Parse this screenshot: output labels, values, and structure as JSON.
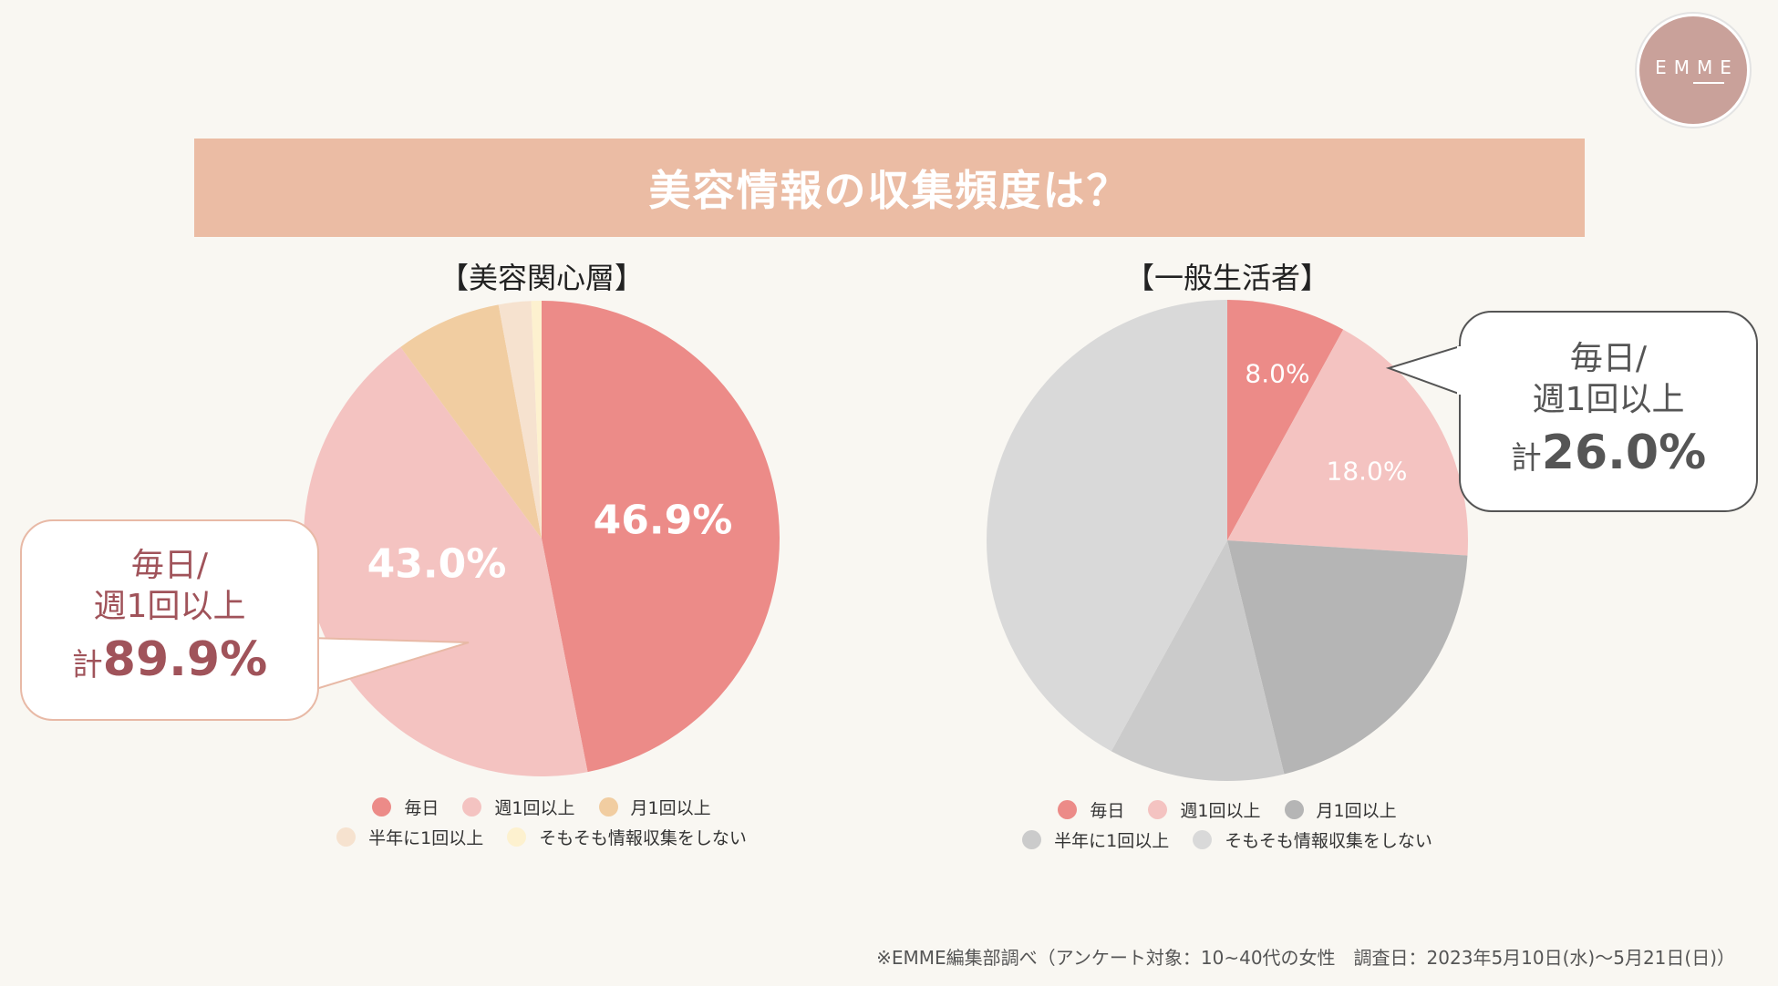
{
  "logo": {
    "text": "EMME",
    "color": "#c9a19a"
  },
  "title": "美容情報の収集頻度は？",
  "colors": {
    "title_bar": "#ebbca4",
    "background": "#f9f7f2"
  },
  "chart_data": [
    {
      "type": "pie",
      "title": "【美容関心層】",
      "categories": [
        "毎日",
        "週1回以上",
        "月1回以上",
        "半年に1回以上",
        "そもそも情報収集をしない"
      ],
      "values": [
        46.9,
        43.0,
        7.2,
        2.2,
        0.7
      ],
      "colors": [
        "#ec8b88",
        "#f4c3c1",
        "#f1cda1",
        "#f6e2cf",
        "#fdf1cf"
      ],
      "data_labels": [
        "46.9%",
        "43.0%",
        "",
        "",
        ""
      ],
      "legend": "bottom",
      "callout": {
        "line1": "毎日/",
        "line2": "週1回以上",
        "prefix": "計",
        "value": "89.9%"
      }
    },
    {
      "type": "pie",
      "title": "【一般生活者】",
      "categories": [
        "毎日",
        "週1回以上",
        "月1回以上",
        "半年に1回以上",
        "そもそも情報収集をしない"
      ],
      "values": [
        8.0,
        18.0,
        20.2,
        11.8,
        42.0
      ],
      "colors": [
        "#ec8b88",
        "#f4c3c1",
        "#b5b5b5",
        "#cbcbcb",
        "#d9d9d9"
      ],
      "data_labels": [
        "8.0%",
        "18.0%",
        "",
        "",
        ""
      ],
      "legend": "bottom",
      "callout": {
        "line1": "毎日/",
        "line2": "週1回以上",
        "prefix": "計",
        "value": "26.0%"
      }
    }
  ],
  "footer": "※EMME編集部調べ（アンケート対象：10~40代の女性　調査日：2023年5月10日(水)〜5月21日(日)）"
}
